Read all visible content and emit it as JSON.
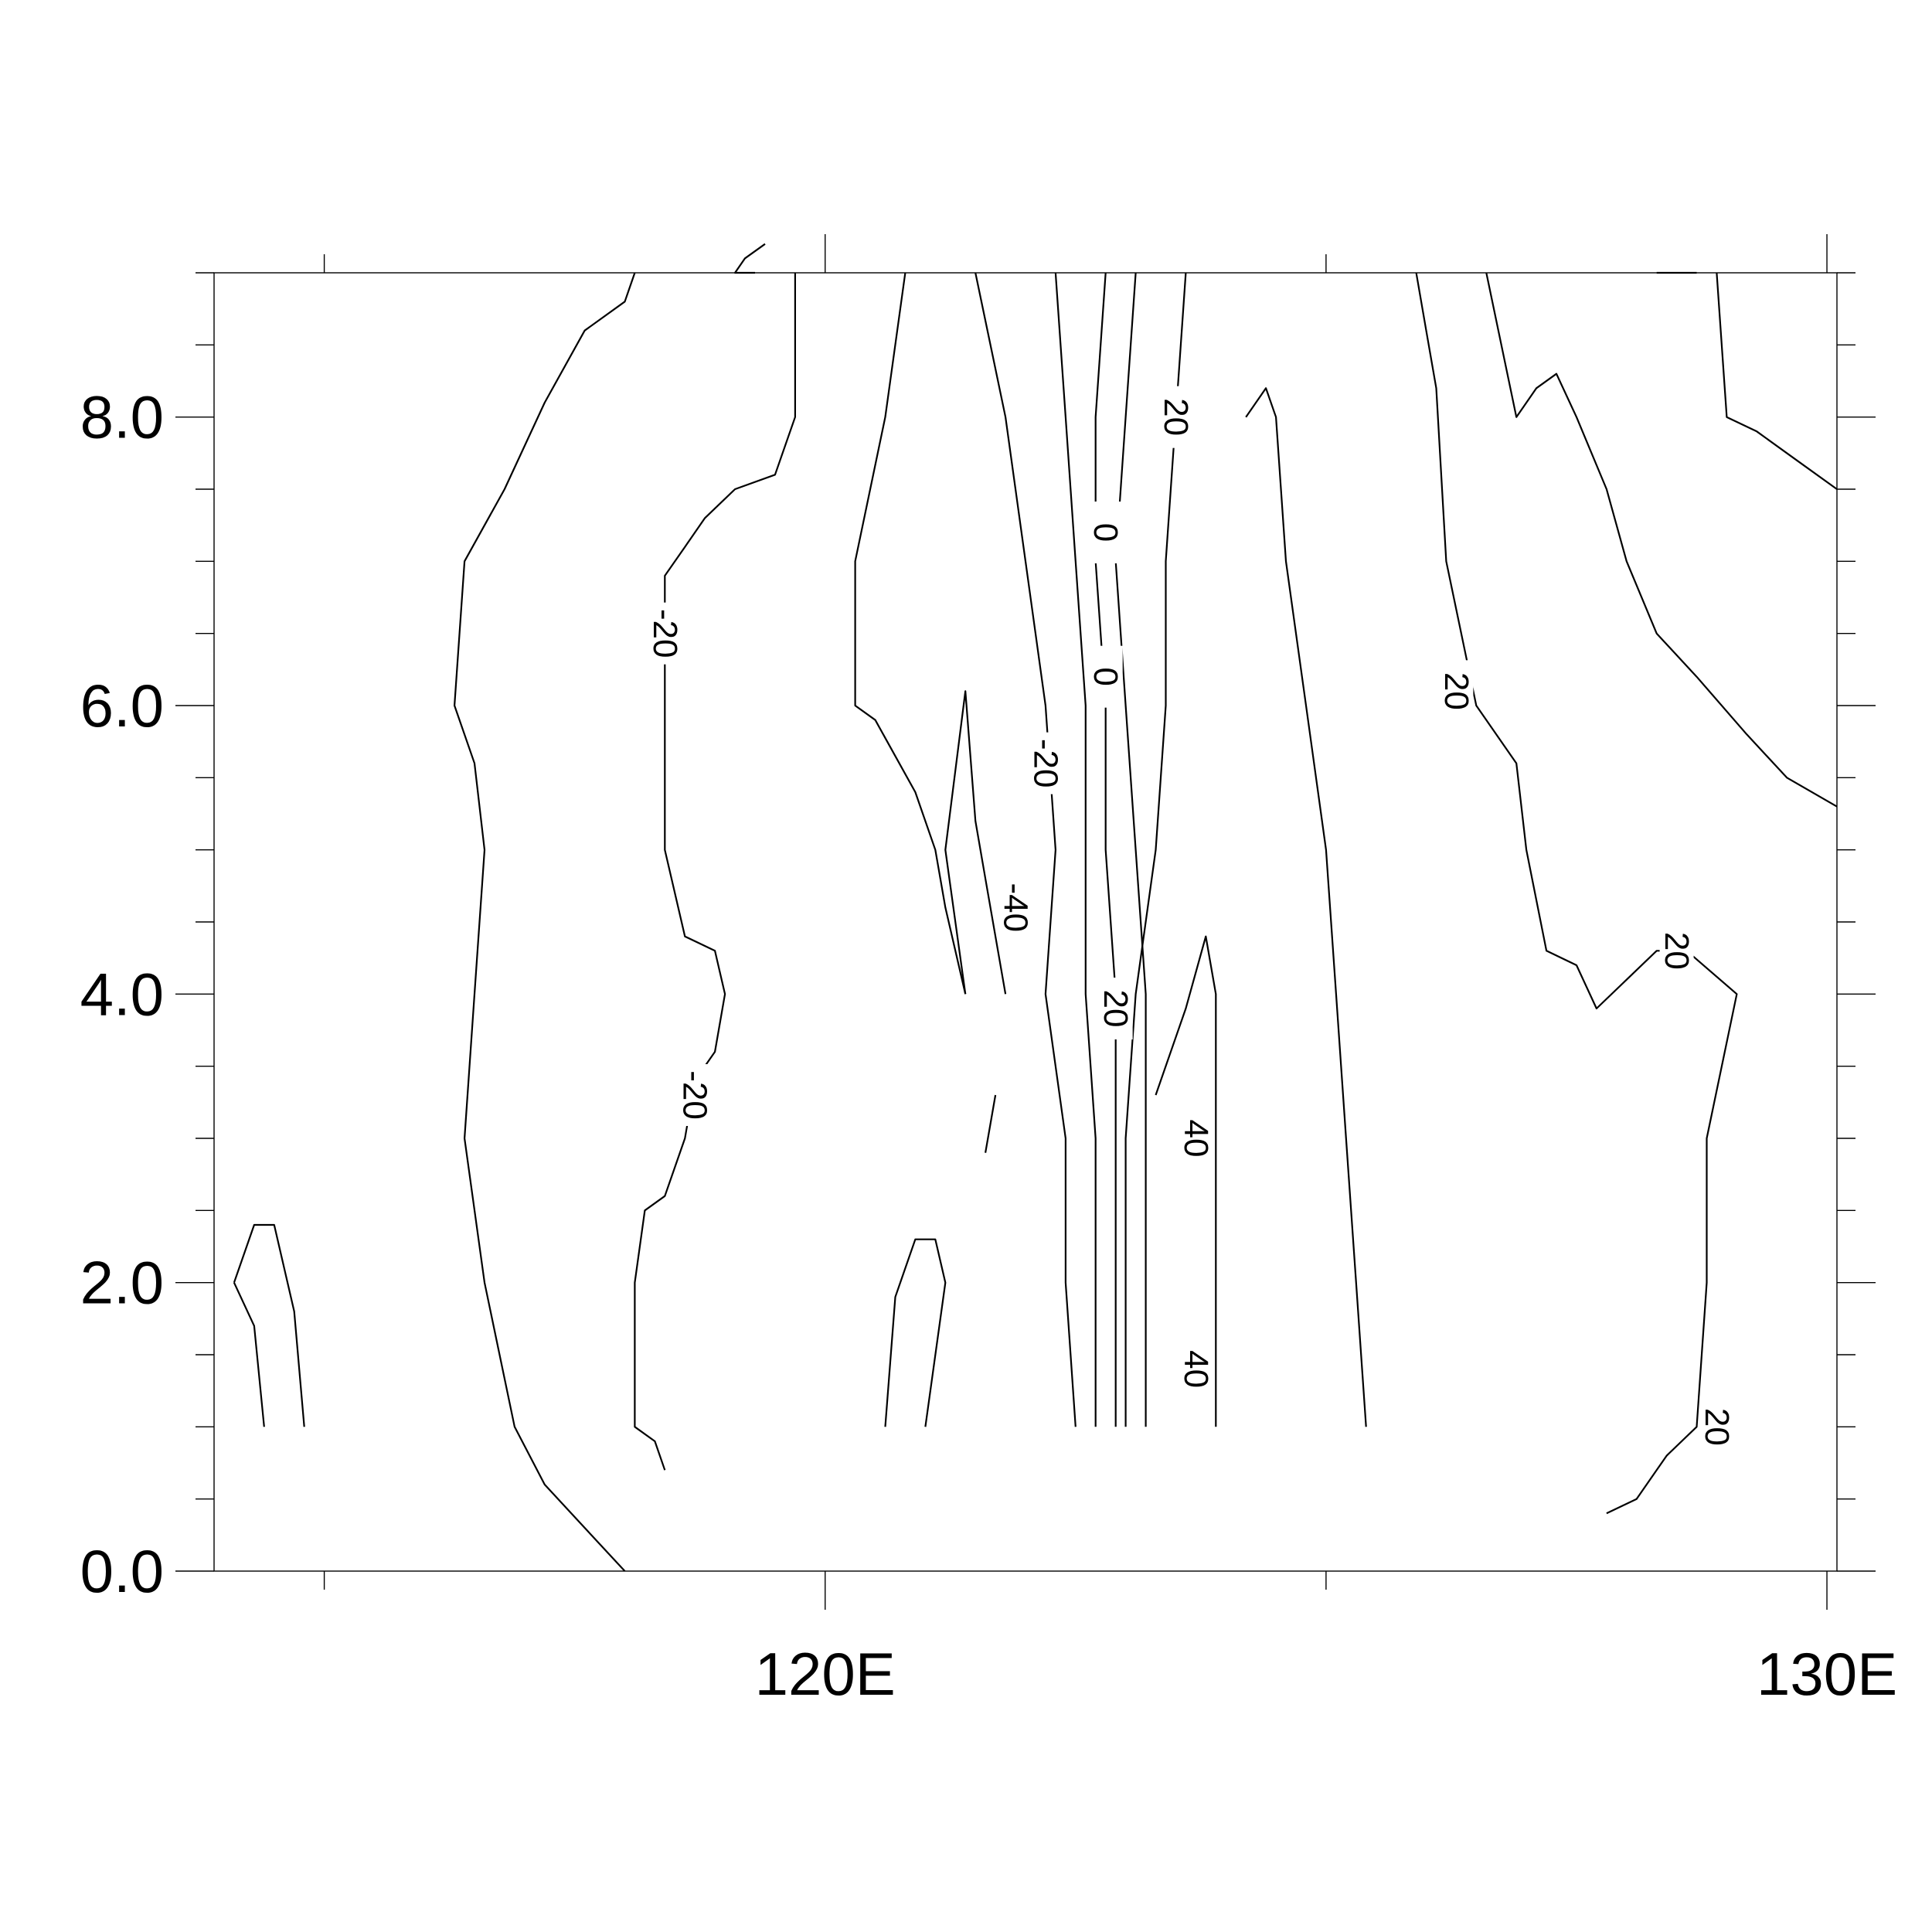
{
  "chart_data": {
    "type": "contour",
    "title": "",
    "xlabel": "",
    "ylabel": "",
    "xlim": [
      113.9,
      130.1
    ],
    "ylim": [
      0.0,
      9.0
    ],
    "x_ticks": [
      {
        "value": 120,
        "label": "120E"
      },
      {
        "value": 130,
        "label": "130E"
      }
    ],
    "x_minor_ticks": [
      115,
      125
    ],
    "y_ticks": [
      {
        "value": 0,
        "label": "0.0"
      },
      {
        "value": 2,
        "label": "2.0"
      },
      {
        "value": 4,
        "label": "4.0"
      },
      {
        "value": 6,
        "label": "6.0"
      },
      {
        "value": 8,
        "label": "8.0"
      }
    ],
    "y_minor_ticks": [
      0.5,
      1,
      1.5,
      2.5,
      3,
      3.5,
      4.5,
      5,
      5.5,
      6.5,
      7,
      7.5,
      8.5,
      9
    ],
    "contour_labels": [
      {
        "text": "-20",
        "x": 118.4,
        "y": 6.5
      },
      {
        "text": "-20",
        "x": 118.7,
        "y": 3.3
      },
      {
        "text": "-20",
        "x": 122.2,
        "y": 5.6
      },
      {
        "text": "-40",
        "x": 121.9,
        "y": 4.6
      },
      {
        "text": "0",
        "x": 122.8,
        "y": 7.2
      },
      {
        "text": "0",
        "x": 122.8,
        "y": 6.2
      },
      {
        "text": "20",
        "x": 123.5,
        "y": 8.0
      },
      {
        "text": "20",
        "x": 122.9,
        "y": 3.9
      },
      {
        "text": "40",
        "x": 123.7,
        "y": 3.0
      },
      {
        "text": "40",
        "x": 123.7,
        "y": 1.4
      },
      {
        "text": "20",
        "x": 126.3,
        "y": 6.1
      },
      {
        "text": "20",
        "x": 128.5,
        "y": 4.3
      },
      {
        "text": "20",
        "x": 128.9,
        "y": 1.0
      }
    ],
    "contours": [
      [
        [
          114.1,
          2.0
        ],
        [
          114.3,
          2.4
        ],
        [
          114.5,
          2.4
        ],
        [
          114.7,
          1.8
        ],
        [
          114.8,
          1.0
        ]
      ],
      [
        [
          114.1,
          2.0
        ],
        [
          114.3,
          1.7
        ],
        [
          114.4,
          1.0
        ]
      ],
      [
        [
          118.1,
          9.0
        ],
        [
          118.0,
          8.8
        ],
        [
          117.6,
          8.6
        ],
        [
          117.2,
          8.1
        ],
        [
          116.8,
          7.5
        ],
        [
          116.4,
          7.0
        ],
        [
          116.3,
          6.0
        ],
        [
          116.5,
          5.6
        ],
        [
          116.6,
          5.0
        ],
        [
          116.5,
          4.0
        ],
        [
          116.4,
          3.0
        ],
        [
          116.6,
          2.0
        ],
        [
          116.9,
          1.0
        ],
        [
          117.2,
          0.6
        ],
        [
          117.6,
          0.3
        ],
        [
          118.0,
          0.0
        ]
      ],
      [
        [
          119.7,
          9.0
        ],
        [
          119.7,
          8.0
        ],
        [
          119.5,
          7.6
        ],
        [
          119.1,
          7.5
        ],
        [
          118.8,
          7.3
        ],
        [
          118.6,
          7.1
        ],
        [
          118.4,
          6.9
        ],
        [
          118.4,
          6.0
        ],
        [
          118.4,
          5.0
        ],
        [
          118.6,
          4.4
        ],
        [
          118.9,
          4.3
        ],
        [
          119.0,
          4.0
        ],
        [
          118.9,
          3.6
        ],
        [
          118.7,
          3.4
        ],
        [
          118.6,
          3.0
        ],
        [
          118.4,
          2.6
        ],
        [
          118.2,
          2.5
        ],
        [
          118.1,
          2.0
        ],
        [
          118.1,
          1.0
        ],
        [
          118.3,
          0.9
        ],
        [
          118.4,
          0.7
        ]
      ],
      [
        [
          119.3,
          9.0
        ],
        [
          119.1,
          9.0
        ],
        [
          119.2,
          9.1
        ],
        [
          119.4,
          9.2
        ]
      ],
      [
        [
          120.8,
          9.0
        ],
        [
          120.6,
          8.0
        ],
        [
          120.3,
          7.0
        ],
        [
          120.3,
          6.0
        ],
        [
          120.5,
          5.9
        ],
        [
          120.9,
          5.4
        ],
        [
          121.1,
          5.0
        ],
        [
          121.2,
          4.6
        ],
        [
          121.4,
          4.0
        ]
      ],
      [
        [
          120.6,
          1.0
        ],
        [
          120.7,
          1.9
        ],
        [
          120.9,
          2.3
        ],
        [
          121.1,
          2.3
        ],
        [
          121.2,
          2.0
        ],
        [
          121.0,
          1.0
        ]
      ],
      [
        [
          121.4,
          4.0
        ],
        [
          121.2,
          5.0
        ],
        [
          121.4,
          6.1
        ],
        [
          121.5,
          5.2
        ],
        [
          121.6,
          4.8
        ],
        [
          121.8,
          4.0
        ]
      ],
      [
        [
          121.7,
          3.3
        ],
        [
          121.6,
          2.9
        ]
      ],
      [
        [
          121.5,
          9.0
        ],
        [
          121.8,
          8.0
        ],
        [
          122.0,
          7.0
        ],
        [
          122.2,
          6.0
        ],
        [
          122.3,
          5.0
        ],
        [
          122.2,
          4.0
        ],
        [
          122.4,
          3.0
        ],
        [
          122.4,
          2.0
        ],
        [
          122.5,
          1.0
        ]
      ],
      [
        [
          122.3,
          9.0
        ],
        [
          122.4,
          8.0
        ],
        [
          122.5,
          7.0
        ],
        [
          122.6,
          6.0
        ],
        [
          122.6,
          5.0
        ],
        [
          122.6,
          4.0
        ],
        [
          122.7,
          3.0
        ],
        [
          122.7,
          1.0
        ]
      ],
      [
        [
          122.8,
          9.0
        ],
        [
          122.7,
          8.0
        ],
        [
          122.7,
          7.0
        ],
        [
          122.8,
          6.0
        ],
        [
          122.8,
          5.0
        ],
        [
          122.9,
          4.0
        ],
        [
          122.9,
          3.0
        ],
        [
          122.9,
          1.0
        ]
      ],
      [
        [
          123.1,
          9.0
        ],
        [
          123.0,
          8.0
        ],
        [
          122.9,
          7.0
        ],
        [
          123.0,
          6.0
        ],
        [
          123.1,
          5.0
        ],
        [
          123.2,
          4.0
        ],
        [
          123.2,
          3.0
        ],
        [
          123.2,
          1.0
        ]
      ],
      [
        [
          123.6,
          9.0
        ],
        [
          123.5,
          8.0
        ],
        [
          123.4,
          7.0
        ],
        [
          123.4,
          6.0
        ],
        [
          123.3,
          5.0
        ],
        [
          123.1,
          4.0
        ],
        [
          123.0,
          3.0
        ],
        [
          123.0,
          1.0
        ]
      ],
      [
        [
          123.3,
          3.3
        ],
        [
          123.6,
          3.9
        ],
        [
          123.8,
          4.4
        ],
        [
          123.9,
          4.0
        ],
        [
          123.9,
          3.0
        ],
        [
          123.9,
          2.0
        ],
        [
          123.9,
          1.0
        ]
      ],
      [
        [
          124.2,
          8.0
        ],
        [
          124.4,
          8.2
        ],
        [
          124.5,
          8.0
        ],
        [
          124.6,
          7.0
        ],
        [
          124.8,
          6.0
        ],
        [
          125.0,
          5.0
        ],
        [
          125.1,
          4.0
        ],
        [
          125.2,
          3.0
        ],
        [
          125.3,
          2.0
        ],
        [
          125.4,
          1.0
        ]
      ],
      [
        [
          125.9,
          9.0
        ],
        [
          126.0,
          8.6
        ],
        [
          126.1,
          8.2
        ],
        [
          126.2,
          7.0
        ],
        [
          126.5,
          6.0
        ],
        [
          126.9,
          5.6
        ],
        [
          127.0,
          5.0
        ],
        [
          127.2,
          4.3
        ],
        [
          127.5,
          4.2
        ],
        [
          127.7,
          3.9
        ],
        [
          128.0,
          4.1
        ],
        [
          128.3,
          4.3
        ],
        [
          128.6,
          4.3
        ],
        [
          129.1,
          4.0
        ],
        [
          128.8,
          3.0
        ],
        [
          128.8,
          2.0
        ],
        [
          128.7,
          1.0
        ],
        [
          128.4,
          0.8
        ],
        [
          128.1,
          0.5
        ],
        [
          127.8,
          0.4
        ]
      ],
      [
        [
          126.6,
          9.0
        ],
        [
          126.9,
          8.0
        ],
        [
          127.1,
          8.2
        ],
        [
          127.3,
          8.3
        ],
        [
          127.5,
          8.0
        ],
        [
          127.8,
          7.5
        ],
        [
          128.0,
          7.0
        ],
        [
          128.3,
          6.5
        ],
        [
          128.7,
          6.2
        ],
        [
          129.2,
          5.8
        ],
        [
          129.6,
          5.5
        ],
        [
          130.1,
          5.3
        ]
      ],
      [
        [
          128.9,
          9.0
        ],
        [
          129.0,
          8.0
        ],
        [
          129.3,
          7.9
        ],
        [
          129.7,
          7.7
        ],
        [
          130.1,
          7.5
        ]
      ],
      [
        [
          128.3,
          9.0
        ],
        [
          128.5,
          9.0
        ],
        [
          128.7,
          9.0
        ]
      ]
    ]
  }
}
